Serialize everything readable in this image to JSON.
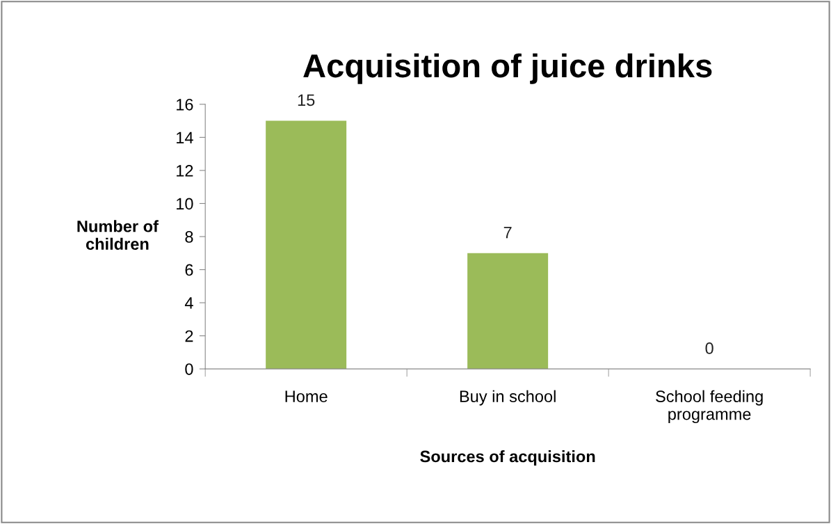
{
  "chart_data": {
    "type": "bar",
    "title": "Acquisition of juice drinks",
    "xlabel": "Sources of acquisition",
    "ylabel": "Number of\nchildren",
    "categories": [
      "Home",
      "Buy in school",
      "School feeding\nprogramme"
    ],
    "values": [
      15,
      7,
      0
    ],
    "color": "#9bbb59",
    "ylim": [
      0,
      16
    ],
    "yticks": [
      0,
      2,
      4,
      6,
      8,
      10,
      12,
      14,
      16
    ],
    "grid": false,
    "legend": false,
    "data_labels": true
  }
}
